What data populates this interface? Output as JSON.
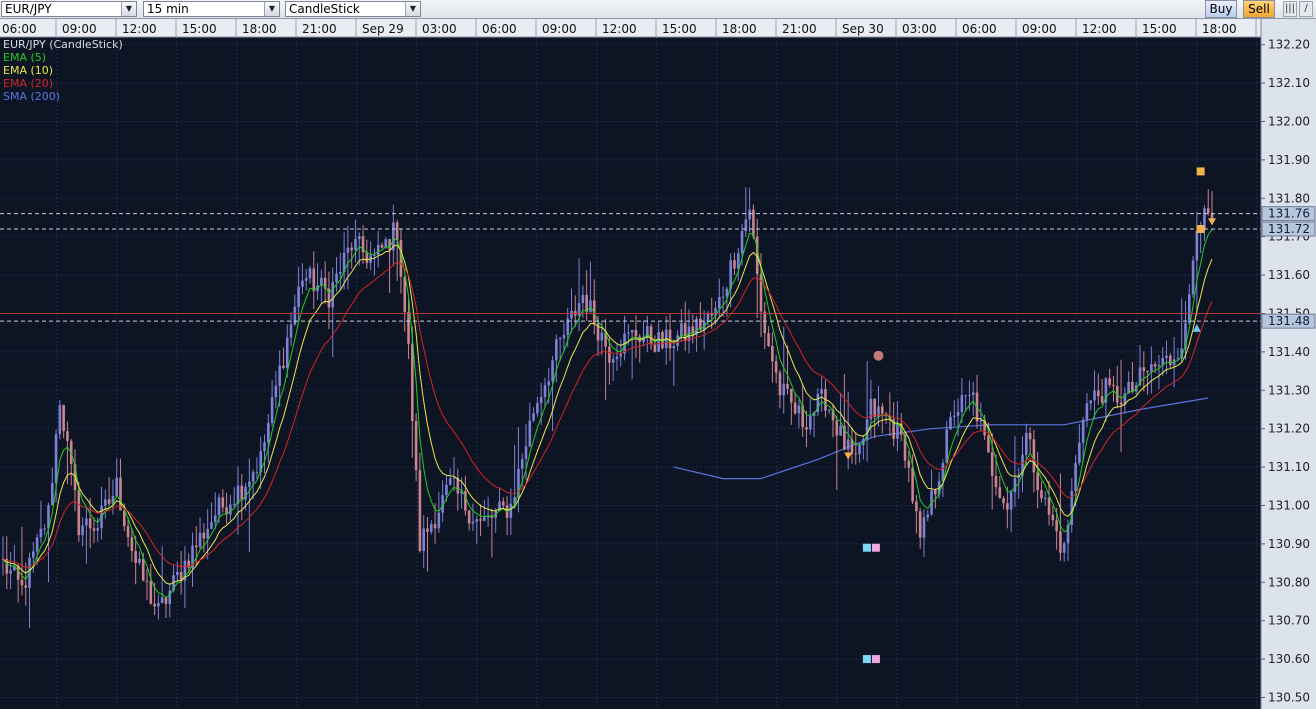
{
  "toolbar": {
    "symbol": "EUR/JPY",
    "timeframe": "15 min",
    "chart_type": "CandleStick",
    "buy_label": "Buy",
    "sell_label": "Sell"
  },
  "colors": {
    "background": "#0d1424",
    "grid": "#1f2b47",
    "candle_up": "#7b82d6",
    "candle_down": "#c9848e",
    "ema5": "#22cc22",
    "ema10": "#e8e84a",
    "ema20": "#d42424",
    "sma200": "#5b74e0",
    "hline_red": "#b43a3a",
    "hline_white": "#c8d0e0"
  },
  "chart_data": {
    "type": "candlestick",
    "title": "EUR/JPY (CandleStick)",
    "legend": [
      "EMA (5)",
      "EMA (10)",
      "EMA (20)",
      "SMA (200)"
    ],
    "legend_position": "top-left",
    "grid": true,
    "x_tick_labels": [
      "06:00",
      "09:00",
      "12:00",
      "15:00",
      "18:00",
      "21:00",
      "Sep 29",
      "03:00",
      "06:00",
      "09:00",
      "12:00",
      "15:00",
      "18:00",
      "21:00",
      "Sep 30",
      "03:00",
      "06:00",
      "09:00",
      "12:00",
      "15:00",
      "18:00"
    ],
    "y_tick_labels": [
      "132.20",
      "132.10",
      "132.00",
      "131.90",
      "131.80",
      "131.70",
      "131.60",
      "131.50",
      "131.40",
      "131.30",
      "131.20",
      "131.10",
      "131.00",
      "130.90",
      "130.80",
      "130.70",
      "130.60",
      "130.50"
    ],
    "ylim": [
      130.47,
      132.22
    ],
    "price_markers": [
      "131.76",
      "131.72",
      "131.48"
    ],
    "red_level": 131.5,
    "anchors": [
      {
        "t": 0,
        "p": 130.85
      },
      {
        "t": 5,
        "p": 130.78
      },
      {
        "t": 12,
        "p": 130.98
      },
      {
        "t": 15,
        "p": 131.28
      },
      {
        "t": 20,
        "p": 130.95
      },
      {
        "t": 25,
        "p": 130.95
      },
      {
        "t": 30,
        "p": 131.05
      },
      {
        "t": 35,
        "p": 130.85
      },
      {
        "t": 41,
        "p": 130.72
      },
      {
        "t": 48,
        "p": 130.85
      },
      {
        "t": 56,
        "p": 130.98
      },
      {
        "t": 63,
        "p": 131.05
      },
      {
        "t": 68,
        "p": 131.12
      },
      {
        "t": 73,
        "p": 131.35
      },
      {
        "t": 79,
        "p": 131.6
      },
      {
        "t": 86,
        "p": 131.55
      },
      {
        "t": 92,
        "p": 131.68
      },
      {
        "t": 98,
        "p": 131.64
      },
      {
        "t": 104,
        "p": 131.72
      },
      {
        "t": 107,
        "p": 131.4
      },
      {
        "t": 110,
        "p": 130.9
      },
      {
        "t": 118,
        "p": 131.05
      },
      {
        "t": 126,
        "p": 130.95
      },
      {
        "t": 134,
        "p": 131.0
      },
      {
        "t": 140,
        "p": 131.25
      },
      {
        "t": 146,
        "p": 131.4
      },
      {
        "t": 153,
        "p": 131.55
      },
      {
        "t": 160,
        "p": 131.4
      },
      {
        "t": 167,
        "p": 131.45
      },
      {
        "t": 174,
        "p": 131.42
      },
      {
        "t": 181,
        "p": 131.45
      },
      {
        "t": 188,
        "p": 131.5
      },
      {
        "t": 193,
        "p": 131.65
      },
      {
        "t": 197,
        "p": 131.78
      },
      {
        "t": 200,
        "p": 131.5
      },
      {
        "t": 205,
        "p": 131.3
      },
      {
        "t": 211,
        "p": 131.22
      },
      {
        "t": 217,
        "p": 131.28
      },
      {
        "t": 221,
        "p": 131.18
      },
      {
        "t": 225,
        "p": 131.1
      },
      {
        "t": 229,
        "p": 131.25
      },
      {
        "t": 234,
        "p": 131.22
      },
      {
        "t": 238,
        "p": 131.15
      },
      {
        "t": 242,
        "p": 130.9
      },
      {
        "t": 246,
        "p": 131.05
      },
      {
        "t": 251,
        "p": 131.25
      },
      {
        "t": 256,
        "p": 131.28
      },
      {
        "t": 260,
        "p": 131.12
      },
      {
        "t": 265,
        "p": 131.0
      },
      {
        "t": 270,
        "p": 131.18
      },
      {
        "t": 275,
        "p": 131.0
      },
      {
        "t": 280,
        "p": 130.88
      },
      {
        "t": 285,
        "p": 131.25
      },
      {
        "t": 290,
        "p": 131.3
      },
      {
        "t": 296,
        "p": 131.28
      },
      {
        "t": 302,
        "p": 131.35
      },
      {
        "t": 308,
        "p": 131.38
      },
      {
        "t": 312,
        "p": 131.45
      },
      {
        "t": 315,
        "p": 131.75
      },
      {
        "t": 317,
        "p": 131.74
      }
    ],
    "sma200": [
      {
        "t": 177,
        "p": 131.1
      },
      {
        "t": 190,
        "p": 131.07
      },
      {
        "t": 200,
        "p": 131.07
      },
      {
        "t": 215,
        "p": 131.12
      },
      {
        "t": 230,
        "p": 131.18
      },
      {
        "t": 245,
        "p": 131.2
      },
      {
        "t": 260,
        "p": 131.21
      },
      {
        "t": 280,
        "p": 131.21
      },
      {
        "t": 300,
        "p": 131.25
      },
      {
        "t": 318,
        "p": 131.28
      }
    ],
    "markers": [
      {
        "shape": "circle",
        "t": 231,
        "p": 131.39,
        "color": "#c47a78"
      },
      {
        "shape": "tri-down",
        "t": 223,
        "p": 131.13,
        "color": "#f2b24a"
      },
      {
        "shape": "squares",
        "t": 229,
        "p": 130.89,
        "color": "#7fd8f5"
      },
      {
        "shape": "squares",
        "t": 229,
        "p": 130.6,
        "color": "#7fd8f5"
      },
      {
        "shape": "square",
        "t": 316,
        "p": 131.87,
        "color": "#f2b24a"
      },
      {
        "shape": "square",
        "t": 316,
        "p": 131.72,
        "color": "#f2b24a"
      },
      {
        "shape": "tri-down",
        "t": 319,
        "p": 131.74,
        "color": "#f2b24a"
      },
      {
        "shape": "tri-up",
        "t": 315,
        "p": 131.46,
        "color": "#6ec2f2"
      }
    ]
  }
}
